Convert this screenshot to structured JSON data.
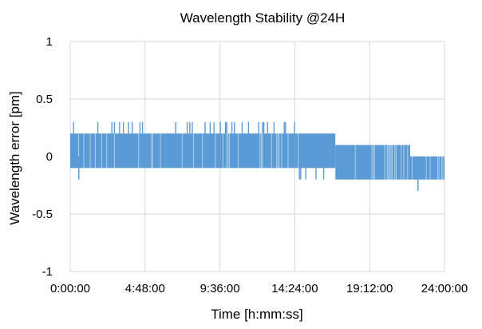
{
  "chart_data": {
    "type": "line",
    "title": "Wavelength Stability @24H",
    "xlabel": "Time [h:mm:ss]",
    "ylabel": "Wavelength error [pm]",
    "x_tick_labels": [
      "0:00:00",
      "4:48:00",
      "9:36:00",
      "14:24:00",
      "19:12:00",
      "24:00:00"
    ],
    "x_ticks_hours": [
      0,
      4.8,
      9.6,
      14.4,
      19.2,
      24
    ],
    "xlim_hours": [
      0,
      24
    ],
    "y_tick_labels": [
      "1",
      "0.5",
      "0",
      "-0.5",
      "-1"
    ],
    "y_ticks": [
      1,
      0.5,
      0,
      -0.5,
      -1
    ],
    "ylim": [
      -1,
      1
    ],
    "grid": true,
    "color": "#5b9bd5",
    "series": [
      {
        "segments": [
          {
            "x_start_hours": 0,
            "x_end_hours": 14.4,
            "band": [
              -0.1,
              0.2
            ],
            "spike_high": 0.3,
            "spike_low": -0.1
          },
          {
            "x_start_hours": 14.4,
            "x_end_hours": 17.0,
            "band": [
              -0.1,
              0.2
            ],
            "spike_high": 0.2,
            "spike_low": -0.2
          },
          {
            "x_start_hours": 17.0,
            "x_end_hours": 21.8,
            "band": [
              -0.2,
              0.1
            ],
            "spike_high": 0.1,
            "spike_low": -0.2
          },
          {
            "x_start_hours": 21.8,
            "x_end_hours": 24,
            "band": [
              -0.2,
              0.0
            ],
            "spike_high": 0.0,
            "spike_low": -0.2
          }
        ],
        "outliers": [
          {
            "x_hours": 0.55,
            "y": -0.2
          },
          {
            "x_hours": 22.3,
            "y": -0.3
          }
        ]
      }
    ]
  }
}
